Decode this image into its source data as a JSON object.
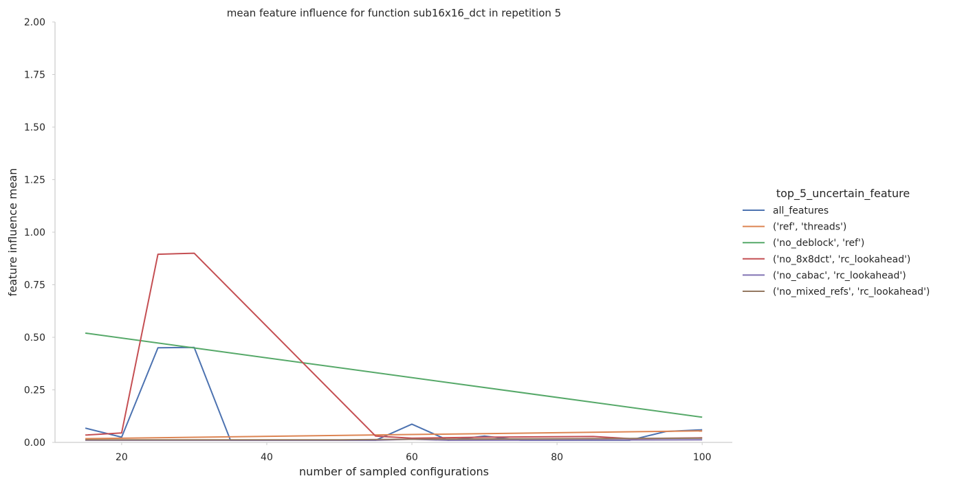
{
  "chart_data": {
    "type": "line",
    "title": "mean feature influence for function sub16x16_dct in repetition 5",
    "xlabel": "number of sampled configurations",
    "ylabel": "feature influence mean",
    "xlim": [
      11,
      104
    ],
    "ylim": [
      0,
      2
    ],
    "xticks": [
      20,
      40,
      60,
      80,
      100
    ],
    "yticks": [
      0.0,
      0.25,
      0.5,
      0.75,
      1.0,
      1.25,
      1.5,
      1.75,
      2.0
    ],
    "ytick_labels": [
      "0.00",
      "0.25",
      "0.50",
      "0.75",
      "1.00",
      "1.25",
      "1.50",
      "1.75",
      "2.00"
    ],
    "grid": false,
    "legend": {
      "title": "top_5_uncertain_feature",
      "placement": "right"
    },
    "series": [
      {
        "name": "all_features",
        "color": "#4c72b0",
        "x": [
          15,
          20,
          25,
          30,
          35,
          40,
          45,
          50,
          55,
          60,
          65,
          70,
          75,
          80,
          85,
          90,
          95,
          100
        ],
        "y": [
          0.068,
          0.025,
          0.45,
          0.452,
          0.01,
          0.01,
          0.01,
          0.01,
          0.01,
          0.087,
          0.01,
          0.03,
          0.01,
          0.01,
          0.01,
          0.01,
          0.052,
          0.06
        ]
      },
      {
        "name": "('ref', 'threads')",
        "color": "#dd8452",
        "x": [
          15,
          100
        ],
        "y": [
          0.018,
          0.055
        ]
      },
      {
        "name": "('no_deblock', 'ref')",
        "color": "#55a868",
        "x": [
          15,
          100
        ],
        "y": [
          0.52,
          0.12
        ]
      },
      {
        "name": "('no_8x8dct', 'rc_lookahead')",
        "color": "#c44e52",
        "x": [
          15,
          20,
          25,
          30,
          55,
          60,
          70,
          85,
          90,
          100
        ],
        "y": [
          0.035,
          0.045,
          0.895,
          0.9,
          0.03,
          0.02,
          0.025,
          0.028,
          0.018,
          0.022
        ]
      },
      {
        "name": "('no_cabac', 'rc_lookahead')",
        "color": "#8172b3",
        "x": [
          15,
          55,
          60,
          65,
          100
        ],
        "y": [
          0.01,
          0.01,
          0.015,
          0.01,
          0.012
        ]
      },
      {
        "name": "('no_mixed_refs', 'rc_lookahead')",
        "color": "#937860",
        "x": [
          15,
          50,
          60,
          100
        ],
        "y": [
          0.012,
          0.012,
          0.015,
          0.02
        ]
      }
    ]
  }
}
